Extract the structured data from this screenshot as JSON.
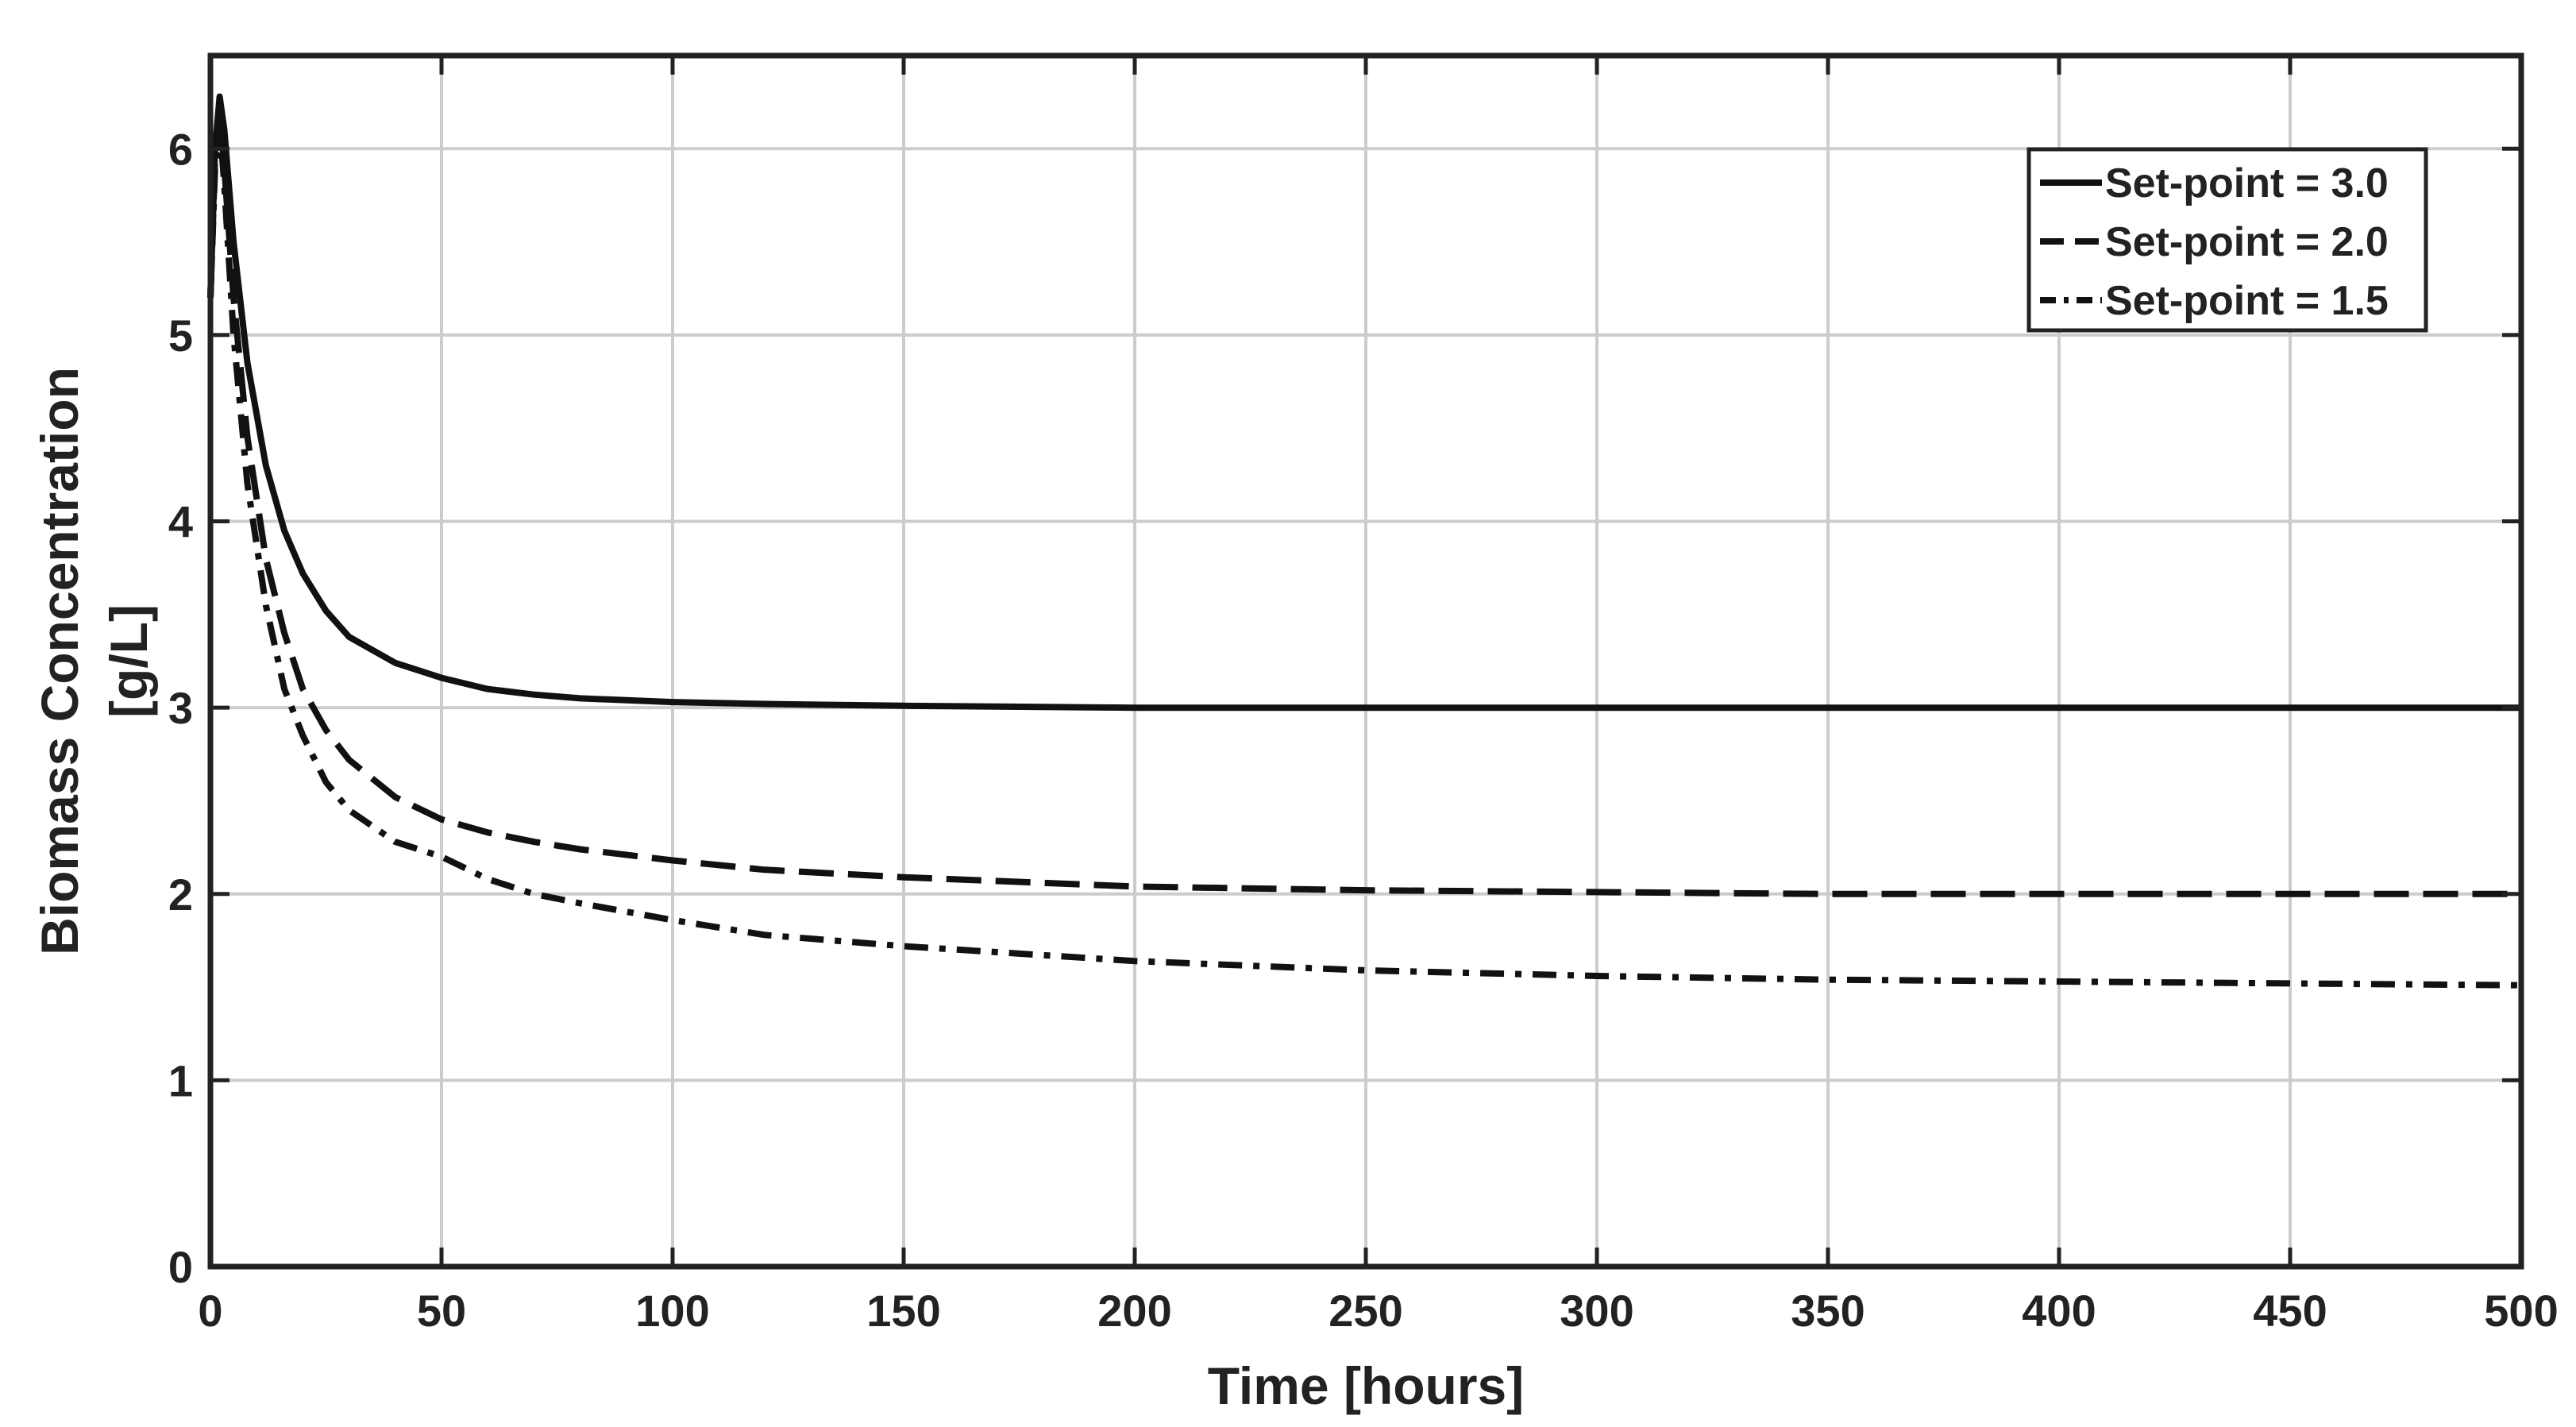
{
  "chart_data": {
    "type": "line",
    "xlabel": "Time [hours]",
    "ylabel_lines": [
      "Biomass Concentration",
      "[g/L]"
    ],
    "xlim": [
      0,
      500
    ],
    "ylim": [
      0,
      6.5
    ],
    "xticks": [
      0,
      50,
      100,
      150,
      200,
      250,
      300,
      350,
      400,
      450,
      500
    ],
    "yticks": [
      0,
      1,
      2,
      3,
      4,
      5,
      6
    ],
    "grid": true,
    "legend_position": "top-right",
    "x": [
      0,
      1,
      2,
      3,
      5,
      8,
      12,
      16,
      20,
      25,
      30,
      40,
      50,
      60,
      70,
      80,
      100,
      120,
      150,
      200,
      250,
      300,
      350,
      400,
      450,
      500
    ],
    "series": [
      {
        "name": "Set-point = 3.0",
        "style": "solid",
        "values": [
          5.2,
          6.0,
          6.28,
          6.1,
          5.5,
          4.85,
          4.3,
          3.95,
          3.72,
          3.52,
          3.38,
          3.24,
          3.16,
          3.1,
          3.07,
          3.05,
          3.03,
          3.02,
          3.01,
          3.0,
          3.0,
          3.0,
          3.0,
          3.0,
          3.0,
          3.0
        ]
      },
      {
        "name": "Set-point = 2.0",
        "style": "dashed",
        "values": [
          5.2,
          5.95,
          6.2,
          5.9,
          5.2,
          4.45,
          3.8,
          3.4,
          3.1,
          2.88,
          2.72,
          2.52,
          2.4,
          2.33,
          2.28,
          2.24,
          2.18,
          2.13,
          2.09,
          2.04,
          2.02,
          2.01,
          2.0,
          2.0,
          2.0,
          2.0
        ]
      },
      {
        "name": "Set-point = 1.5",
        "style": "dash-dot",
        "values": [
          5.2,
          5.9,
          6.15,
          5.8,
          5.0,
          4.2,
          3.55,
          3.1,
          2.85,
          2.6,
          2.45,
          2.28,
          2.2,
          2.08,
          2.0,
          1.95,
          1.86,
          1.78,
          1.72,
          1.64,
          1.59,
          1.56,
          1.54,
          1.53,
          1.52,
          1.51
        ]
      }
    ],
    "colors": {
      "line": "#111111",
      "grid": "#cccccc",
      "axis": "#222222"
    }
  }
}
